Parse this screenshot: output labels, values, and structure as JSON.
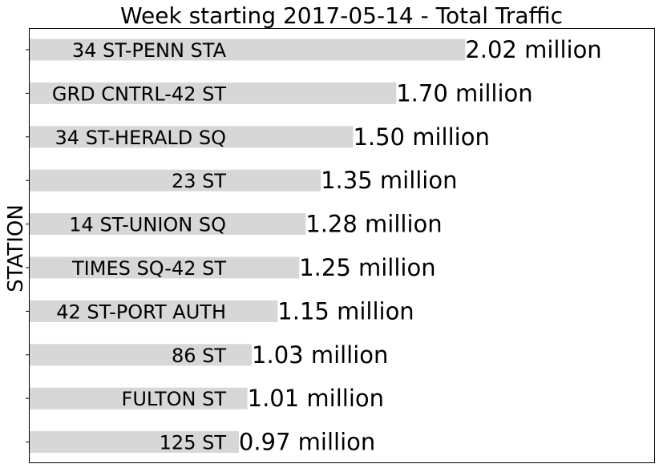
{
  "chart_data": {
    "type": "bar",
    "orientation": "horizontal",
    "title": "Week starting 2017-05-14 - Total Traffic",
    "xlabel": "",
    "ylabel": "STATION",
    "xlim": [
      0,
      2.9
    ],
    "grid": false,
    "legend": "none",
    "bar_color": "#d7d7d7",
    "categories": [
      "34 ST-PENN STA",
      "GRD CNTRL-42 ST",
      "34 ST-HERALD SQ",
      "23 ST",
      "14 ST-UNION SQ",
      "TIMES SQ-42 ST",
      "42 ST-PORT AUTH",
      "86 ST",
      "FULTON ST",
      "125 ST"
    ],
    "values": [
      2.02,
      1.7,
      1.5,
      1.35,
      1.28,
      1.25,
      1.15,
      1.03,
      1.01,
      0.97
    ],
    "value_labels": [
      "2.02 million",
      "1.70 million",
      "1.50 million",
      "1.35 million",
      "1.28 million",
      "1.25 million",
      "1.15 million",
      "1.03 million",
      "1.01 million",
      "0.97 million"
    ]
  }
}
